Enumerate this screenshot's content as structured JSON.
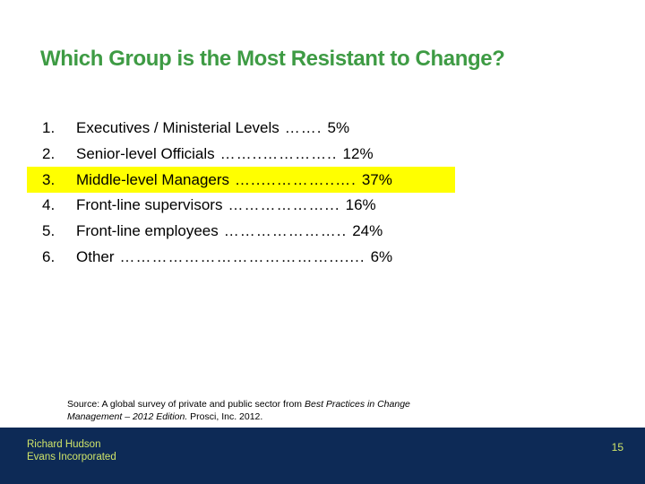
{
  "slide": {
    "title": "Which Group is the Most Resistant to Change?",
    "title_color": "#3E9B44",
    "background_color": "#FFFFFF"
  },
  "list": {
    "highlight_color": "#FFFF00",
    "items": [
      {
        "number": "1.",
        "label": "Executives / Ministerial Levels",
        "leader": "…….",
        "value": "5%",
        "highlighted": false
      },
      {
        "number": "2.",
        "label": "Senior-level Officials",
        "leader": "……..…………..",
        "value": "12%",
        "highlighted": false
      },
      {
        "number": "3.",
        "label": "Middle-level Managers",
        "leader": "….....………..….",
        "value": "37%",
        "highlighted": true
      },
      {
        "number": "4.",
        "label": "Front-line supervisors",
        "leader": "………………...",
        "value": "16%",
        "highlighted": false
      },
      {
        "number": "5.",
        "label": "Front-line employees",
        "leader": "…………………..",
        "value": "24%",
        "highlighted": false
      },
      {
        "number": "6.",
        "label": "Other",
        "leader": "………………………………….......",
        "value": "6%",
        "highlighted": false
      }
    ]
  },
  "source": {
    "prefix": "Source:  A global survey of private and public sector from ",
    "italic": "Best Practices in Change Management – 2012 Edition.",
    "suffix": " Prosci, Inc.  2012."
  },
  "footer": {
    "author_line1": "Richard Hudson",
    "author_line2": "Evans Incorporated",
    "page_number": "15",
    "bg_color": "#0D2A56",
    "text_color": "#CFE469"
  }
}
